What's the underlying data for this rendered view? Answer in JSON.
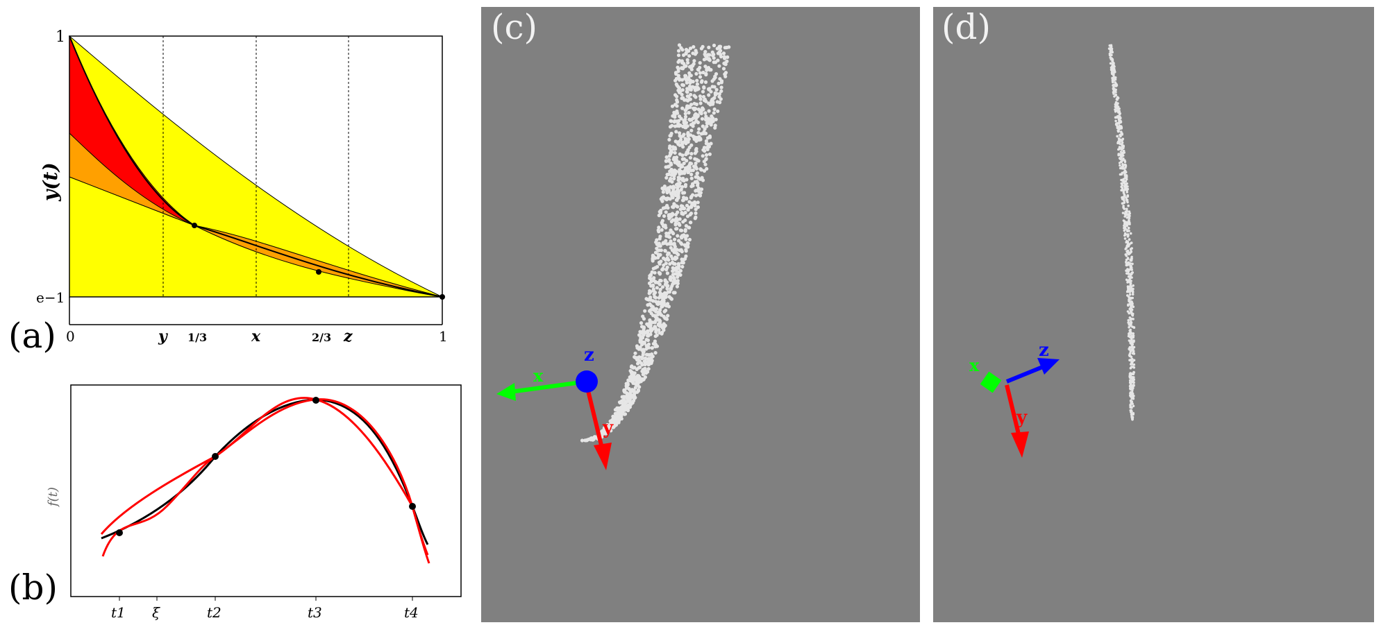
{
  "panel_a": {
    "label": "(a)",
    "y_axis_label": "y(t)",
    "y_ticks": [
      "1",
      "e−1"
    ],
    "x_ticks": [
      "0",
      "y",
      "1/3",
      "x",
      "2/3",
      "z",
      "1"
    ],
    "colors": {
      "red": "#ff0000",
      "orange": "#ffa000",
      "yellow": "#ffff00"
    }
  },
  "panel_b": {
    "label": "(b)",
    "y_axis_label": "f(t)",
    "x_ticks": [
      "t1",
      "ξ",
      "t2",
      "t3",
      "t4"
    ],
    "colors": {
      "curve": "#000000",
      "bounds": "#ff0000"
    }
  },
  "panel_c": {
    "label": "(c)",
    "axes": {
      "x": "x",
      "y": "y",
      "z": "z"
    },
    "colors": {
      "background": "#808080",
      "x": "#00ff00",
      "y": "#ff0000",
      "z": "#0000ff",
      "points": "#e6e6e6"
    }
  },
  "panel_d": {
    "label": "(d)",
    "axes": {
      "x": "x",
      "y": "y",
      "z": "z"
    },
    "colors": {
      "background": "#808080",
      "x": "#00ff00",
      "y": "#ff0000",
      "z": "#0000ff",
      "points": "#e6e6e6"
    }
  }
}
